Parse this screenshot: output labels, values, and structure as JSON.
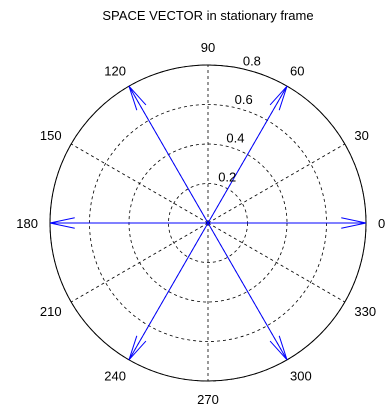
{
  "chart_data": {
    "type": "polar-compass",
    "title": "SPACE VECTOR in stationary frame",
    "rlim": [
      0,
      0.8
    ],
    "radial_ticks": [
      0.2,
      0.4,
      0.6,
      0.8
    ],
    "radial_tick_labels": [
      "0.2",
      "0.4",
      "0.6",
      "0.8"
    ],
    "angle_ticks_deg": [
      0,
      30,
      60,
      90,
      120,
      150,
      180,
      210,
      240,
      270,
      300,
      330
    ],
    "angle_tick_labels": [
      "0",
      "30",
      "60",
      "90",
      "120",
      "150",
      "180",
      "210",
      "240",
      "270",
      "300",
      "330"
    ],
    "grid": true,
    "vectors": [
      {
        "angle_deg": 0,
        "magnitude": 0.8
      },
      {
        "angle_deg": 60,
        "magnitude": 0.8
      },
      {
        "angle_deg": 120,
        "magnitude": 0.8
      },
      {
        "angle_deg": 180,
        "magnitude": 0.8
      },
      {
        "angle_deg": 240,
        "magnitude": 0.8
      },
      {
        "angle_deg": 300,
        "magnitude": 0.8
      }
    ],
    "vector_color": "#0000ff",
    "grid_color": "#000000"
  }
}
